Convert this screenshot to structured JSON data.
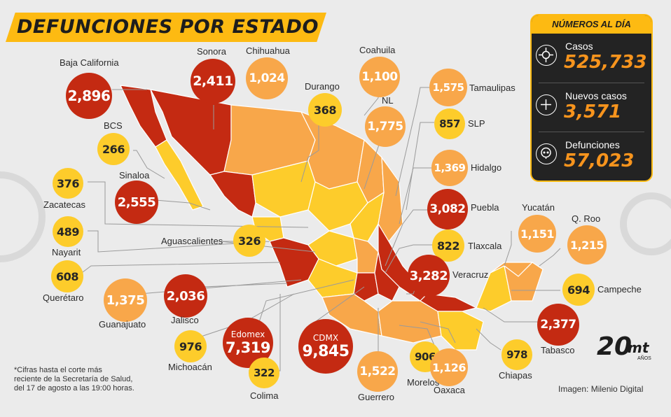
{
  "title": "DEFUNCIONES POR ESTADO",
  "summary": {
    "header": "NÚMEROS AL DÍA",
    "cases": {
      "label": "Casos",
      "value": "525,733",
      "icon": "virus-icon"
    },
    "new_cases": {
      "label": "Nuevos casos",
      "value": "3,571",
      "icon": "plus-icon"
    },
    "deaths": {
      "label": "Defunciones",
      "value": "57,023",
      "icon": "skull-icon"
    }
  },
  "states": [
    {
      "name": "Baja California",
      "value": "2,896"
    },
    {
      "name": "Sonora",
      "value": "2,411"
    },
    {
      "name": "Chihuahua",
      "value": "1,024"
    },
    {
      "name": "Durango",
      "value": "368"
    },
    {
      "name": "Coahuila",
      "value": "1,100"
    },
    {
      "name": "NL",
      "value": "1,775"
    },
    {
      "name": "Tamaulipas",
      "value": "1,575"
    },
    {
      "name": "SLP",
      "value": "857"
    },
    {
      "name": "Hidalgo",
      "value": "1,369"
    },
    {
      "name": "BCS",
      "value": "266"
    },
    {
      "name": "Sinaloa",
      "value": "2,555"
    },
    {
      "name": "Zacatecas",
      "value": "376"
    },
    {
      "name": "Nayarit",
      "value": "489"
    },
    {
      "name": "Querétaro",
      "value": "608"
    },
    {
      "name": "Aguascalientes",
      "value": "326"
    },
    {
      "name": "Puebla",
      "value": "3,082"
    },
    {
      "name": "Tlaxcala",
      "value": "822"
    },
    {
      "name": "Veracruz",
      "value": "3,282"
    },
    {
      "name": "Yucatán",
      "value": "1,151"
    },
    {
      "name": "Q. Roo",
      "value": "1,215"
    },
    {
      "name": "Campeche",
      "value": "694"
    },
    {
      "name": "Guanajuato",
      "value": "1,375"
    },
    {
      "name": "Jalisco",
      "value": "2,036"
    },
    {
      "name": "Michoacán",
      "value": "976"
    },
    {
      "name": "Edomex",
      "value": "7,319"
    },
    {
      "name": "CDMX",
      "value": "9,845"
    },
    {
      "name": "Colima",
      "value": "322"
    },
    {
      "name": "Guerrero",
      "value": "1,522"
    },
    {
      "name": "Morelos",
      "value": "906"
    },
    {
      "name": "Oaxaca",
      "value": "1,126"
    },
    {
      "name": "Chiapas",
      "value": "978"
    },
    {
      "name": "Tabasco",
      "value": "2,377"
    }
  ],
  "footnote": [
    "*Cifras hasta el corte más",
    "reciente de la Secretaría de Salud,",
    "del 17 de agosto a las 19:00 horas."
  ],
  "credit": "Imagen: Milenio Digital",
  "logo": {
    "number": "20",
    "brand": "mt",
    "caption": "AÑOS"
  },
  "colors": {
    "yellow": "#fdcc2b",
    "orange": "#f8a74a",
    "red": "#c42a12",
    "accent": "#fdba12",
    "panel": "#232323"
  }
}
